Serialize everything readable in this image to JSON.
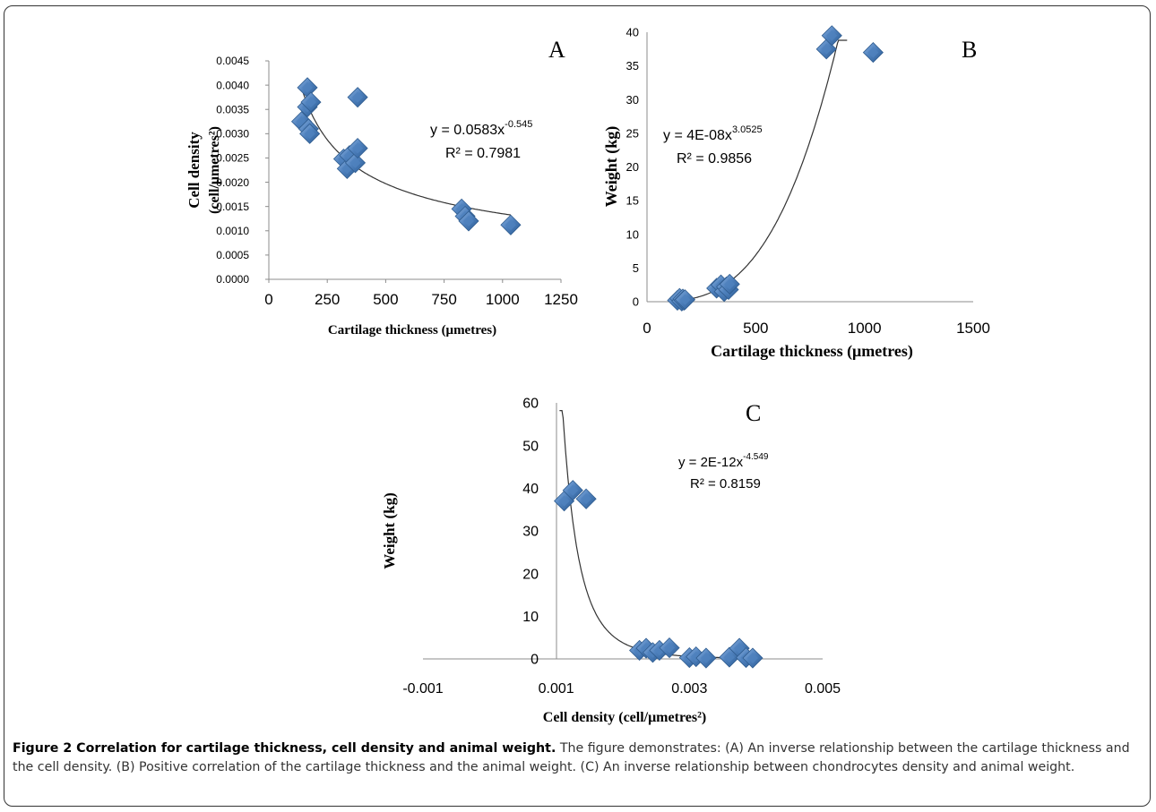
{
  "chart_data": [
    {
      "panel": "A",
      "type": "scatter",
      "xlabel": "Cartilage thickness (μmetres)",
      "ylabel_line1": "Cell density",
      "ylabel_line2": "(cell/μmetres²)",
      "xlim": [
        0,
        1250
      ],
      "ylim": [
        0,
        0.0045
      ],
      "xticks": [
        "0",
        "250",
        "500",
        "750",
        "1000",
        "1250"
      ],
      "yticks": [
        "0.0000",
        "0.0005",
        "0.0010",
        "0.0015",
        "0.0020",
        "0.0025",
        "0.0030",
        "0.0035",
        "0.0040",
        "0.0045"
      ],
      "points": [
        [
          140,
          0.00325
        ],
        [
          165,
          0.00395
        ],
        [
          165,
          0.00355
        ],
        [
          170,
          0.0031
        ],
        [
          175,
          0.003
        ],
        [
          180,
          0.00365
        ],
        [
          320,
          0.00248
        ],
        [
          335,
          0.00228
        ],
        [
          345,
          0.00255
        ],
        [
          370,
          0.0024
        ],
        [
          380,
          0.0027
        ],
        [
          380,
          0.00375
        ],
        [
          825,
          0.00145
        ],
        [
          840,
          0.0013
        ],
        [
          855,
          0.0012
        ],
        [
          1035,
          0.00112
        ]
      ],
      "trendline": {
        "type": "power",
        "a": 0.0583,
        "b": -0.545,
        "x_range": [
          140,
          1035
        ]
      },
      "equation": "y = 0.0583x",
      "equation_exp": "-0.545",
      "r2": "R² = 0.7981",
      "marker_color": "#4f81bd"
    },
    {
      "panel": "B",
      "type": "scatter",
      "xlabel": "Cartilage thickness (μmetres)",
      "ylabel": "Weight (kg)",
      "xlim": [
        0,
        1500
      ],
      "ylim": [
        0,
        40
      ],
      "xticks": [
        "0",
        "500",
        "1000",
        "1500"
      ],
      "yticks": [
        "0",
        "5",
        "10",
        "15",
        "20",
        "25",
        "30",
        "35",
        "40"
      ],
      "points": [
        [
          140,
          0.2
        ],
        [
          150,
          0.5
        ],
        [
          160,
          0.1
        ],
        [
          165,
          0.4
        ],
        [
          170,
          0.2
        ],
        [
          175,
          0.3
        ],
        [
          320,
          2.0
        ],
        [
          340,
          2.5
        ],
        [
          355,
          1.5
        ],
        [
          365,
          2.2
        ],
        [
          375,
          1.8
        ],
        [
          380,
          2.6
        ],
        [
          825,
          37.5
        ],
        [
          850,
          39.5
        ],
        [
          1040,
          37.0
        ]
      ],
      "trendline": {
        "type": "power",
        "a": 4e-08,
        "b": 3.0525,
        "x_range": [
          140,
          920
        ]
      },
      "equation": "y = 4E-08x",
      "equation_exp": "3.0525",
      "r2": "R² = 0.9856",
      "marker_color": "#4f81bd"
    },
    {
      "panel": "C",
      "type": "scatter",
      "xlabel": "Cell density (cell/μmetres²)",
      "ylabel": "Weight (kg)",
      "xlim": [
        -0.001,
        0.005
      ],
      "ylim": [
        0,
        60
      ],
      "xticks": [
        "-0.001",
        "0.001",
        "0.003",
        "0.005"
      ],
      "yticks": [
        "0",
        "10",
        "20",
        "30",
        "40",
        "50",
        "60"
      ],
      "points": [
        [
          0.00112,
          37.0
        ],
        [
          0.00125,
          39.5
        ],
        [
          0.00145,
          37.5
        ],
        [
          0.00225,
          2.0
        ],
        [
          0.00235,
          2.5
        ],
        [
          0.00245,
          1.5
        ],
        [
          0.00255,
          2.0
        ],
        [
          0.0027,
          2.6
        ],
        [
          0.003,
          0.3
        ],
        [
          0.0031,
          0.5
        ],
        [
          0.00325,
          0.2
        ],
        [
          0.0036,
          0.4
        ],
        [
          0.00375,
          2.5
        ],
        [
          0.00385,
          0.3
        ],
        [
          0.00395,
          0.2
        ]
      ],
      "trendline": {
        "type": "power",
        "a": 2e-12,
        "b": -4.549,
        "x_range": [
          0.00105,
          0.00395
        ]
      },
      "equation": "y = 2E-12x",
      "equation_exp": "-4.549",
      "r2": "R² = 0.8159",
      "marker_color": "#4f81bd"
    }
  ],
  "caption": {
    "title": "Figure 2 Correlation for cartilage thickness, cell density and animal weight.",
    "text": " The figure demonstrates: (A) An inverse relationship between the cartilage thickness and the cell density. (B) Positive correlation of the cartilage thickness and the animal weight. (C) An inverse relationship between chondrocytes density and animal weight."
  }
}
